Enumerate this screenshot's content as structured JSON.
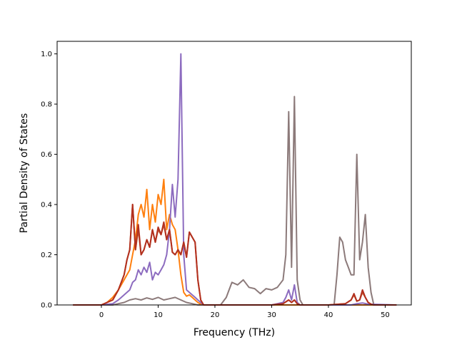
{
  "chart_data": {
    "type": "line",
    "title": "",
    "xlabel": "Frequency (THz)",
    "ylabel": "Partial Density of States",
    "xlim": [
      -7.8,
      54.6
    ],
    "ylim": [
      0,
      1.05
    ],
    "xticks": [
      0,
      10,
      20,
      30,
      40,
      50
    ],
    "yticks": [
      0.0,
      0.2,
      0.4,
      0.6,
      0.8,
      1.0
    ],
    "xtick_labels": [
      "0",
      "10",
      "20",
      "30",
      "40",
      "50"
    ],
    "ytick_labels": [
      "0.0",
      "0.2",
      "0.4",
      "0.6",
      "0.8",
      "1.0"
    ],
    "grid": false,
    "legend": "none",
    "series": [
      {
        "color": "#8c7a7a",
        "x": [
          -5,
          0,
          2,
          3,
          4,
          5,
          6,
          7,
          8,
          9,
          10,
          11,
          12,
          13,
          14,
          15,
          16,
          17,
          18,
          20,
          21,
          22,
          22.5,
          23,
          24,
          25,
          26,
          27,
          28,
          29,
          30,
          31,
          32,
          32.5,
          33,
          33.5,
          34,
          34.5,
          35,
          35.5,
          36,
          40,
          41,
          41.5,
          42,
          42.5,
          43,
          43.5,
          44,
          44.5,
          45,
          45.5,
          46,
          46.5,
          47,
          47.5,
          48,
          52
        ],
        "values": [
          0,
          0,
          0,
          0.005,
          0.01,
          0.02,
          0.025,
          0.02,
          0.028,
          0.022,
          0.03,
          0.02,
          0.025,
          0.03,
          0.02,
          0.01,
          0.005,
          0,
          0,
          0,
          0,
          0.03,
          0.06,
          0.09,
          0.08,
          0.1,
          0.07,
          0.065,
          0.045,
          0.065,
          0.06,
          0.07,
          0.1,
          0.2,
          0.77,
          0.15,
          0.83,
          0.1,
          0.02,
          0,
          0,
          0,
          0,
          0.12,
          0.27,
          0.25,
          0.18,
          0.15,
          0.12,
          0.12,
          0.6,
          0.18,
          0.25,
          0.36,
          0.15,
          0.05,
          0,
          0
        ]
      },
      {
        "color": "#ff7f0e",
        "x": [
          -5,
          0,
          1,
          2,
          3,
          4,
          5,
          5.5,
          6,
          6.5,
          7,
          7.5,
          8,
          8.5,
          9,
          9.5,
          10,
          10.5,
          11,
          11.5,
          12,
          12.5,
          13,
          13.5,
          14,
          14.5,
          15,
          15.5,
          16,
          16.5,
          17,
          17.5,
          18,
          52
        ],
        "values": [
          0,
          0,
          0.01,
          0.03,
          0.06,
          0.1,
          0.14,
          0.2,
          0.26,
          0.36,
          0.4,
          0.35,
          0.46,
          0.3,
          0.4,
          0.33,
          0.44,
          0.4,
          0.5,
          0.3,
          0.36,
          0.32,
          0.3,
          0.22,
          0.12,
          0.05,
          0.035,
          0.04,
          0.03,
          0.02,
          0.01,
          0.003,
          0,
          0
        ]
      },
      {
        "color": "#c85a2e",
        "x": [
          -5,
          0,
          2,
          3,
          4,
          4.5,
          5,
          5.5,
          6,
          6.5,
          7,
          7.5,
          8,
          8.5,
          9,
          9.5,
          10,
          10.5,
          11,
          11.5,
          12,
          12.5,
          13,
          13.5,
          14,
          14.5,
          15,
          15.5,
          16,
          16.5,
          17,
          17.5,
          18,
          20,
          22,
          30,
          32,
          33,
          33.5,
          34,
          34.5,
          35,
          36,
          40,
          43,
          44,
          44.5,
          45,
          45.5,
          46,
          46.5,
          47,
          47.5,
          48,
          52
        ],
        "values": [
          0,
          0,
          0.02,
          0.06,
          0.12,
          0.18,
          0.22,
          0.4,
          0.22,
          0.3,
          0.2,
          0.22,
          0.26,
          0.23,
          0.3,
          0.25,
          0.3,
          0.28,
          0.32,
          0.26,
          0.3,
          0.21,
          0.2,
          0.22,
          0.2,
          0.25,
          0.19,
          0.29,
          0.27,
          0.25,
          0.1,
          0.02,
          0,
          0,
          0,
          0,
          0.005,
          0.02,
          0.01,
          0.02,
          0.005,
          0,
          0,
          0,
          0.005,
          0.02,
          0.04,
          0.015,
          0.02,
          0.05,
          0.03,
          0.01,
          0.003,
          0,
          0
        ]
      },
      {
        "color": "#8c6bbf",
        "x": [
          -5,
          0,
          2,
          3,
          4,
          5,
          5.5,
          6,
          6.5,
          7,
          7.5,
          8,
          8.5,
          9,
          9.5,
          10,
          10.5,
          11,
          11.5,
          12,
          12.5,
          13,
          13.5,
          14,
          14.5,
          15,
          15.5,
          16,
          16.5,
          17,
          17.5,
          18,
          20,
          22,
          30,
          32,
          32.5,
          33,
          33.5,
          34,
          34.5,
          35,
          35.5,
          36,
          40,
          44,
          45,
          46,
          47,
          52
        ],
        "values": [
          0,
          0,
          0.005,
          0.02,
          0.04,
          0.06,
          0.09,
          0.1,
          0.14,
          0.12,
          0.15,
          0.13,
          0.17,
          0.1,
          0.13,
          0.12,
          0.14,
          0.16,
          0.2,
          0.3,
          0.48,
          0.35,
          0.5,
          1.0,
          0.2,
          0.06,
          0.05,
          0.04,
          0.03,
          0.02,
          0.01,
          0,
          0,
          0,
          0,
          0.01,
          0.03,
          0.06,
          0.02,
          0.08,
          0.01,
          0,
          0,
          0,
          0,
          0,
          0.005,
          0.008,
          0.003,
          0
        ]
      },
      {
        "color": "#b2301f",
        "x": [
          -5,
          0,
          2,
          3,
          4,
          4.5,
          5,
          5.5,
          6,
          6.5,
          7,
          7.5,
          8,
          8.5,
          9,
          9.5,
          10,
          10.5,
          11,
          11.5,
          12,
          12.5,
          13,
          13.5,
          14,
          14.5,
          15,
          15.5,
          16,
          16.5,
          17,
          17.5,
          18,
          20,
          22,
          30,
          32,
          33,
          33.5,
          34,
          34.5,
          35,
          36,
          40,
          43,
          44,
          44.5,
          45,
          45.5,
          46,
          46.5,
          47,
          47.5,
          48,
          52
        ],
        "values": [
          0,
          0,
          0.02,
          0.06,
          0.12,
          0.18,
          0.22,
          0.4,
          0.22,
          0.32,
          0.2,
          0.22,
          0.26,
          0.23,
          0.3,
          0.25,
          0.31,
          0.28,
          0.33,
          0.26,
          0.3,
          0.21,
          0.2,
          0.22,
          0.2,
          0.25,
          0.19,
          0.29,
          0.27,
          0.25,
          0.1,
          0.02,
          0,
          0,
          0,
          0,
          0.005,
          0.02,
          0.01,
          0.02,
          0.005,
          0,
          0,
          0,
          0.005,
          0.02,
          0.045,
          0.015,
          0.02,
          0.06,
          0.03,
          0.01,
          0.003,
          0,
          0
        ]
      }
    ]
  }
}
